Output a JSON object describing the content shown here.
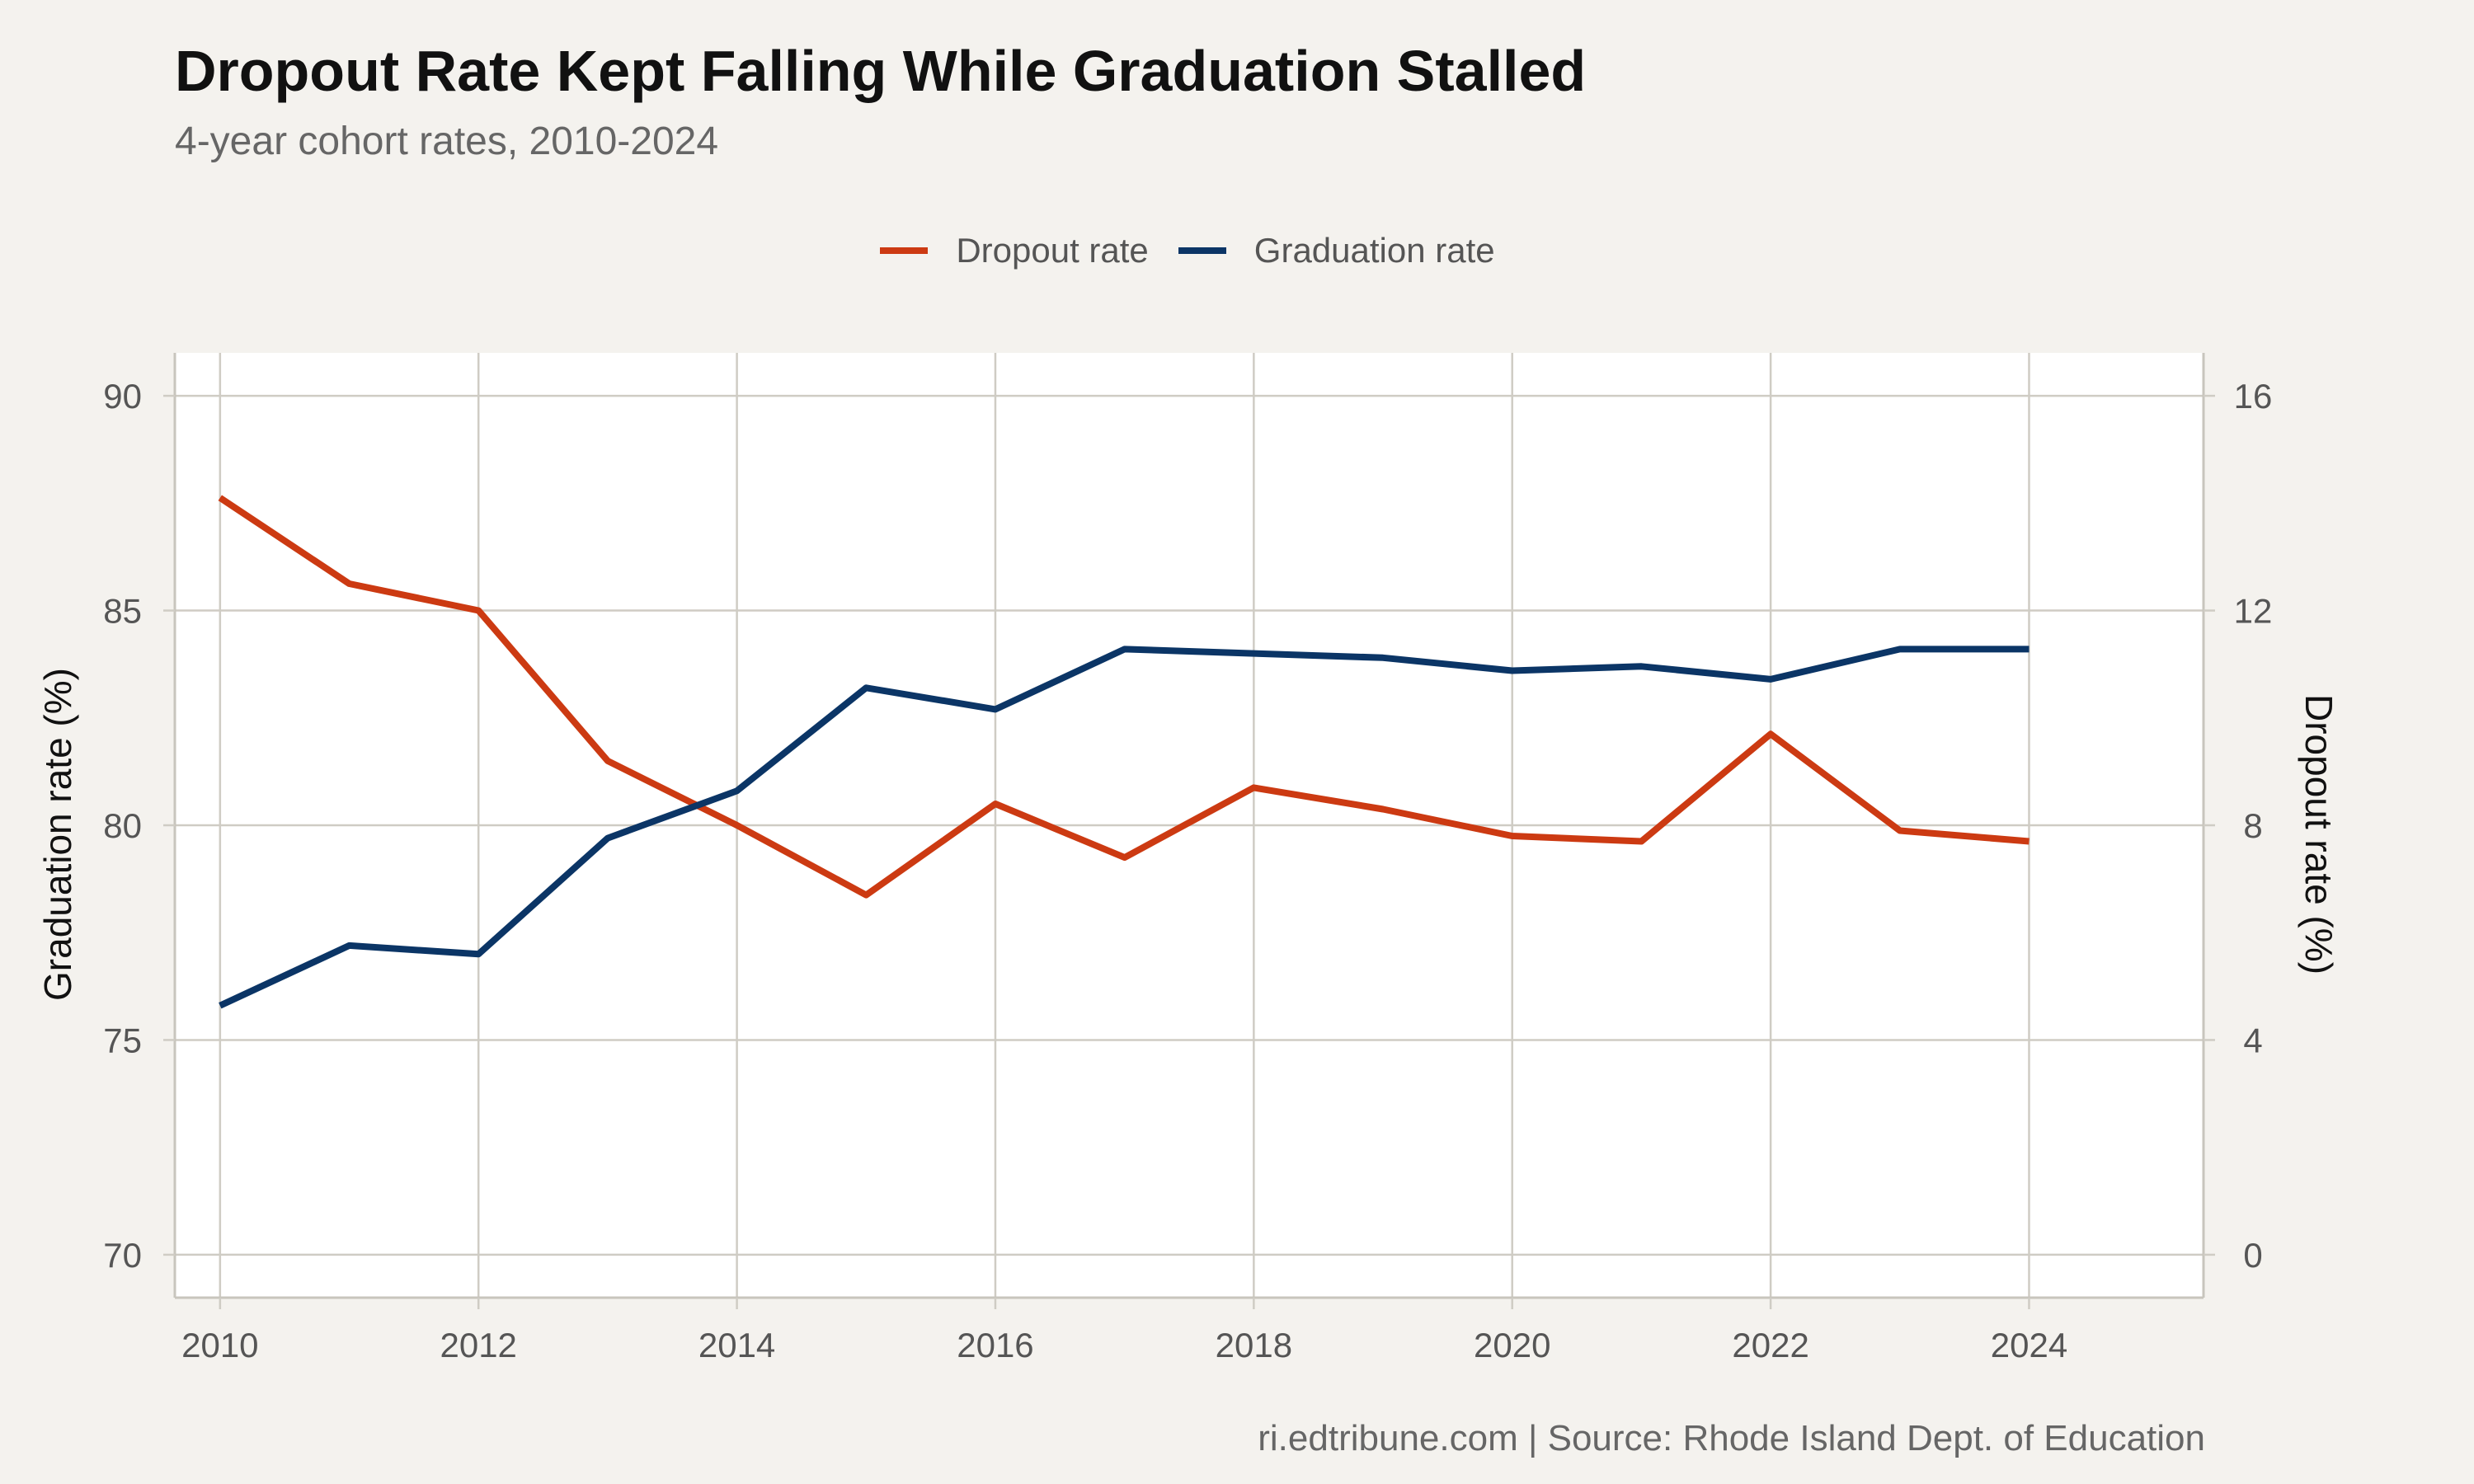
{
  "chart_data": {
    "type": "line",
    "title": "Dropout Rate Kept Falling While Graduation Stalled",
    "subtitle": "4-year cohort rates, 2010-2024",
    "caption": "ri.edtribune.com | Source: Rhode Island Dept. of Education",
    "ylabel": "Graduation rate (%)",
    "y2label": "Dropout rate (%)",
    "x": [
      2010,
      2011,
      2012,
      2013,
      2014,
      2015,
      2016,
      2017,
      2018,
      2019,
      2020,
      2021,
      2022,
      2023,
      2024
    ],
    "xlim": [
      2009.65,
      2025.35
    ],
    "xticks": [
      "2010",
      "2012",
      "2014",
      "2016",
      "2018",
      "2020",
      "2022",
      "2024"
    ],
    "ylim": [
      69,
      91
    ],
    "yticks": [
      "70",
      "75",
      "80",
      "85",
      "90"
    ],
    "y2lim": [
      -0.8,
      16.8
    ],
    "y2ticks": [
      "0",
      "4",
      "8",
      "12",
      "16"
    ],
    "legend_position": "top",
    "grid": true,
    "series": [
      {
        "name": "Dropout rate",
        "axis": "right",
        "color": "#cc3a12",
        "values": [
          14.1,
          12.5,
          12.0,
          9.2,
          8.0,
          6.7,
          8.4,
          7.4,
          8.7,
          8.3,
          7.8,
          7.7,
          9.7,
          7.9,
          7.7
        ]
      },
      {
        "name": "Graduation rate",
        "axis": "left",
        "color": "#0b3566",
        "values": [
          75.8,
          77.2,
          77.0,
          79.7,
          80.8,
          83.2,
          82.7,
          84.1,
          84.0,
          83.9,
          83.6,
          83.7,
          83.4,
          84.1,
          84.1
        ]
      }
    ]
  }
}
